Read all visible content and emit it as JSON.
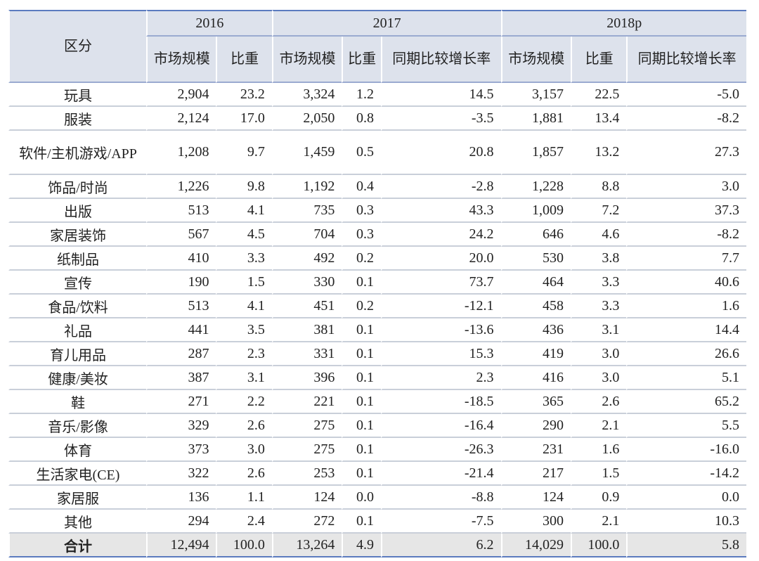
{
  "table": {
    "corner": "区分",
    "groups": [
      {
        "label": "2016",
        "span": 2
      },
      {
        "label": "2017",
        "span": 3
      },
      {
        "label": "2018p",
        "span": 3
      }
    ],
    "columns": [
      "市场规模",
      "比重",
      "市场规模",
      "比重",
      "同期比较增长率",
      "市场规模",
      "比重",
      "同期比较增长率"
    ],
    "rows": [
      [
        "玩具",
        "2,904",
        "23.2",
        "3,324",
        "1.2",
        "14.5",
        "3,157",
        "22.5",
        "-5.0"
      ],
      [
        "服装",
        "2,124",
        "17.0",
        "2,050",
        "0.8",
        "-3.5",
        "1,881",
        "13.4",
        "-8.2"
      ],
      [
        "软件/主机游戏/APP",
        "1,208",
        "9.7",
        "1,459",
        "0.5",
        "20.8",
        "1,857",
        "13.2",
        "27.3"
      ],
      [
        "饰品/时尚",
        "1,226",
        "9.8",
        "1,192",
        "0.4",
        "-2.8",
        "1,228",
        "8.8",
        "3.0"
      ],
      [
        "出版",
        "513",
        "4.1",
        "735",
        "0.3",
        "43.3",
        "1,009",
        "7.2",
        "37.3"
      ],
      [
        "家居装饰",
        "567",
        "4.5",
        "704",
        "0.3",
        "24.2",
        "646",
        "4.6",
        "-8.2"
      ],
      [
        "纸制品",
        "410",
        "3.3",
        "492",
        "0.2",
        "20.0",
        "530",
        "3.8",
        "7.7"
      ],
      [
        "宣传",
        "190",
        "1.5",
        "330",
        "0.1",
        "73.7",
        "464",
        "3.3",
        "40.6"
      ],
      [
        "食品/饮料",
        "513",
        "4.1",
        "451",
        "0.2",
        "-12.1",
        "458",
        "3.3",
        "1.6"
      ],
      [
        "礼品",
        "441",
        "3.5",
        "381",
        "0.1",
        "-13.6",
        "436",
        "3.1",
        "14.4"
      ],
      [
        "育儿用品",
        "287",
        "2.3",
        "331",
        "0.1",
        "15.3",
        "419",
        "3.0",
        "26.6"
      ],
      [
        "健康/美妆",
        "387",
        "3.1",
        "396",
        "0.1",
        "2.3",
        "416",
        "3.0",
        "5.1"
      ],
      [
        "鞋",
        "271",
        "2.2",
        "221",
        "0.1",
        "-18.5",
        "365",
        "2.6",
        "65.2"
      ],
      [
        "音乐/影像",
        "329",
        "2.6",
        "275",
        "0.1",
        "-16.4",
        "290",
        "2.1",
        "5.5"
      ],
      [
        "体育",
        "373",
        "3.0",
        "275",
        "0.1",
        "-26.3",
        "231",
        "1.6",
        "-16.0"
      ],
      [
        "生活家电(CE)",
        "322",
        "2.6",
        "253",
        "0.1",
        "-21.4",
        "217",
        "1.5",
        "-14.2"
      ],
      [
        "家居服",
        "136",
        "1.1",
        "124",
        "0.0",
        "-8.8",
        "124",
        "0.9",
        "0.0"
      ],
      [
        "其他",
        "294",
        "2.4",
        "272",
        "0.1",
        "-7.5",
        "300",
        "2.1",
        "10.3"
      ]
    ],
    "total": [
      "合计",
      "12,494",
      "100.0",
      "13,264",
      "4.9",
      "6.2",
      "14,029",
      "100.0",
      "5.8"
    ]
  }
}
